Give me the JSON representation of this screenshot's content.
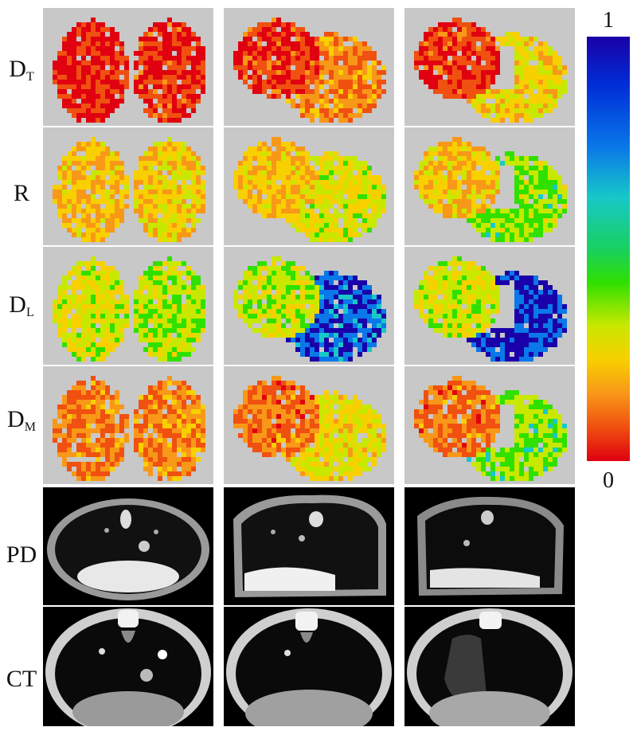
{
  "rows": [
    {
      "key": "DT",
      "main": "D",
      "sub": "T"
    },
    {
      "key": "R",
      "main": "R",
      "sub": ""
    },
    {
      "key": "DL",
      "main": "D",
      "sub": "L"
    },
    {
      "key": "DM",
      "main": "D",
      "sub": "M"
    },
    {
      "key": "PD",
      "main": "PD",
      "sub": ""
    },
    {
      "key": "CT",
      "main": "CT",
      "sub": ""
    }
  ],
  "colorbar": {
    "max_label": "1",
    "min_label": "0",
    "scale_colors": [
      "#1a00a8",
      "#0a78e8",
      "#18c8c8",
      "#30e000",
      "#f8d000",
      "#f89818",
      "#e00010"
    ]
  },
  "panel_background": "#c8c8c8",
  "columns": 3
}
